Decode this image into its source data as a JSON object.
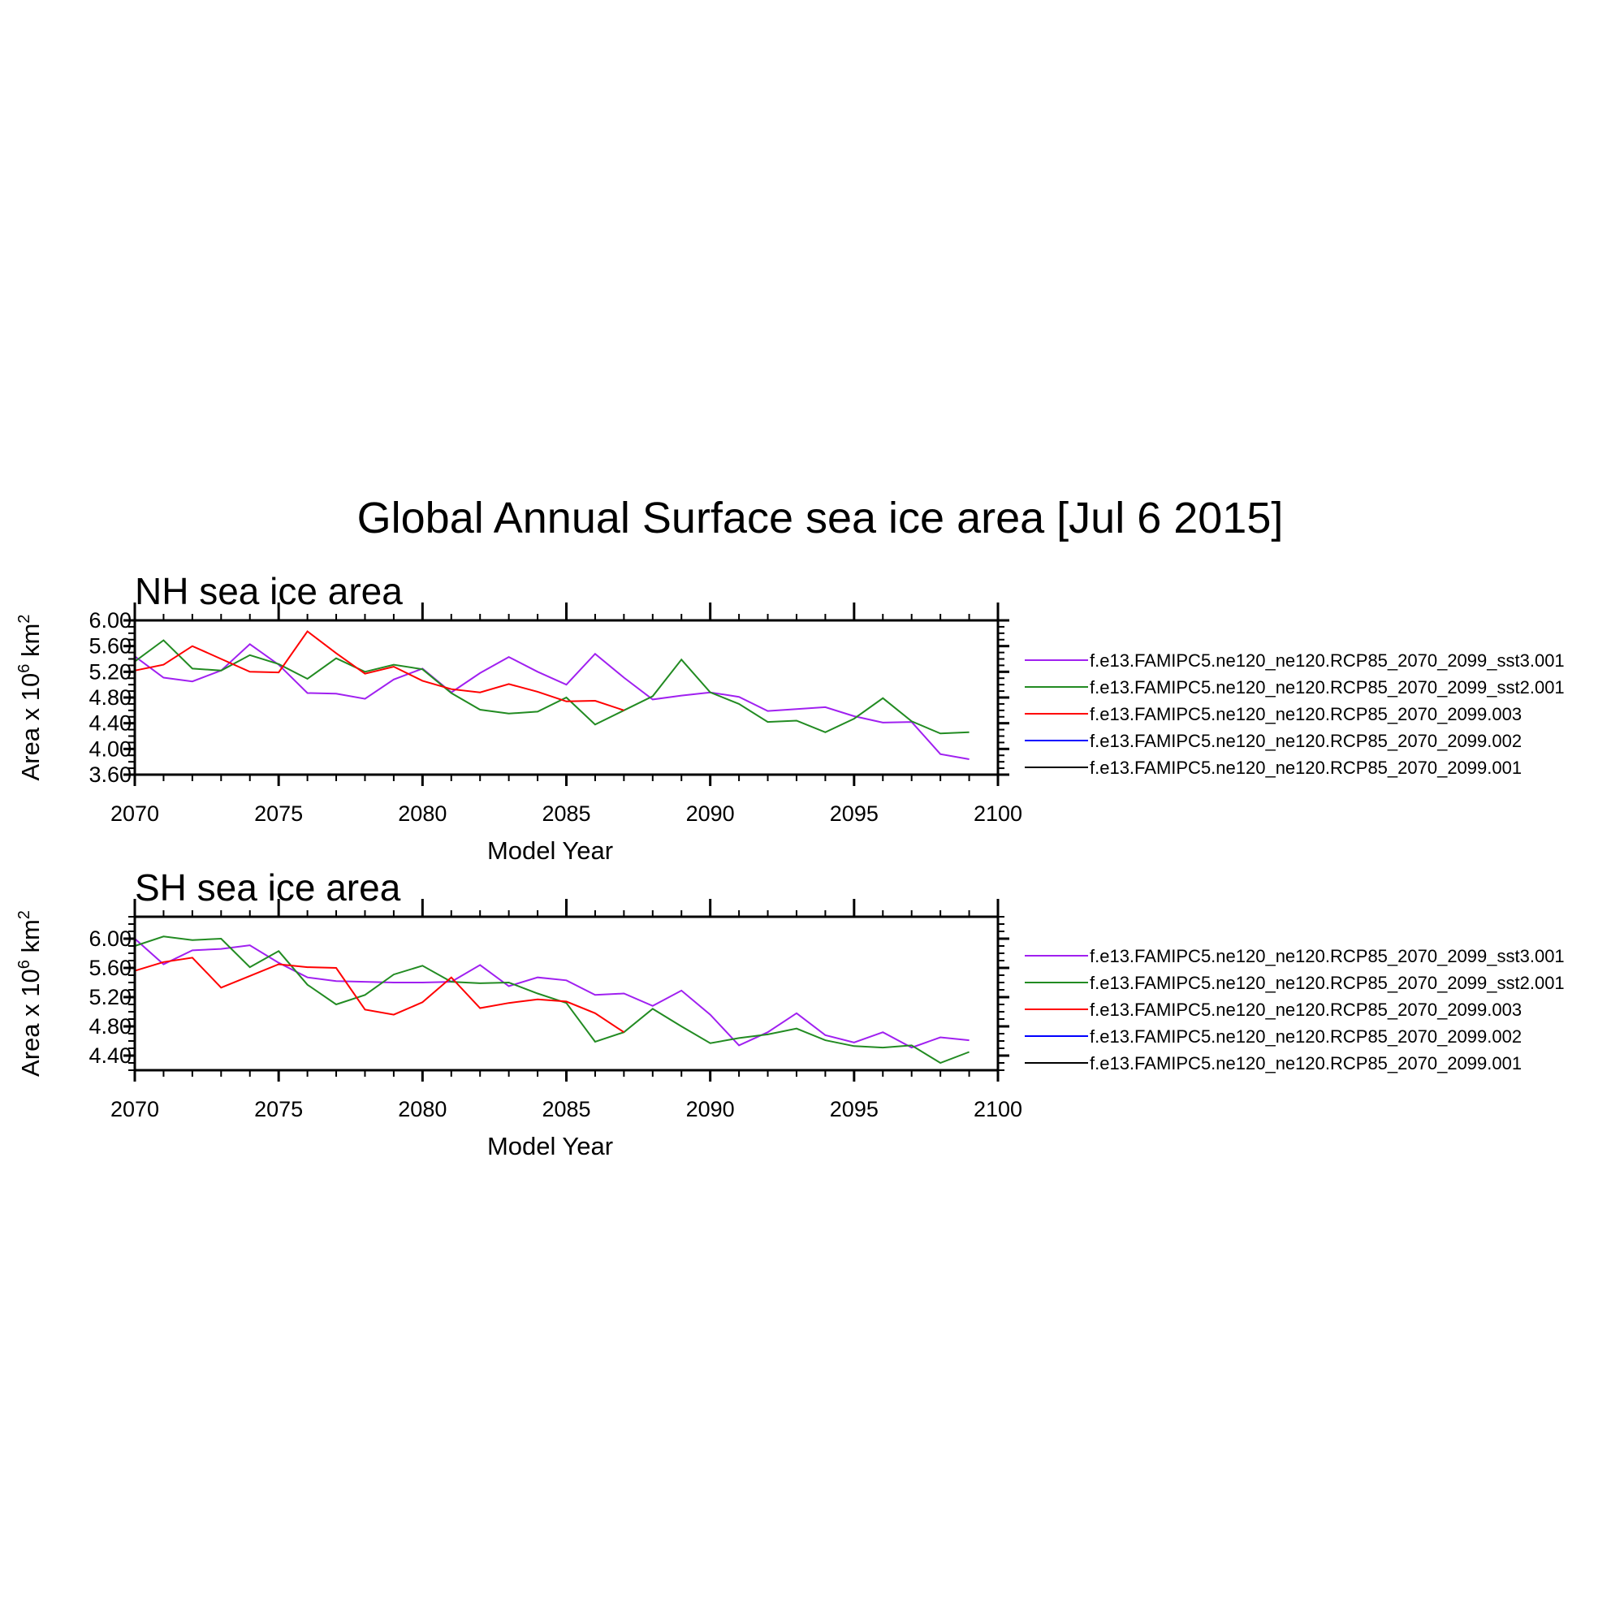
{
  "title": "Global Annual Surface sea ice area [Jul  6 2015]",
  "colors": {
    "sst3": "#a020f0",
    "sst2": "#228b22",
    "run003": "#ff0000",
    "run002": "#0000ff",
    "run001": "#000000"
  },
  "chart_data": [
    {
      "type": "line",
      "title": "NH sea ice area",
      "xlabel": "Model Year",
      "ylabel_prefix": "Area x 10",
      "ylabel_exp": "6",
      "ylabel_unit": " km",
      "ylabel_unit_exp": "2",
      "xlim": [
        2070,
        2100
      ],
      "ylim": [
        3.6,
        6.0
      ],
      "xticks": [
        2070,
        2075,
        2080,
        2085,
        2090,
        2095,
        2100
      ],
      "xtick_labels": [
        "2070",
        "2075",
        "2080",
        "2085",
        "2090",
        "2095",
        "2100"
      ],
      "yticks": [
        3.6,
        4.0,
        4.4,
        4.8,
        5.2,
        5.6,
        6.0
      ],
      "ytick_labels": [
        "3.60",
        "4.00",
        "4.40",
        "4.80",
        "5.20",
        "5.60",
        "6.00"
      ],
      "series": [
        {
          "name": "f.e13.FAMIPC5.ne120_ne120.RCP85_2070_2099_sst3.001",
          "color_key": "sst3",
          "x_start": 2070,
          "values": [
            5.44,
            5.11,
            5.05,
            5.22,
            5.63,
            5.31,
            4.87,
            4.86,
            4.78,
            5.08,
            5.25,
            4.88,
            5.18,
            5.43,
            5.2,
            5.0,
            5.48,
            5.11,
            4.77,
            4.83,
            4.88,
            4.81,
            4.59,
            4.62,
            4.65,
            4.51,
            4.41,
            4.42,
            3.92,
            3.84
          ]
        },
        {
          "name": "f.e13.FAMIPC5.ne120_ne120.RCP85_2070_2099_sst2.001",
          "color_key": "sst2",
          "x_start": 2070,
          "values": [
            5.36,
            5.69,
            5.25,
            5.22,
            5.46,
            5.32,
            5.09,
            5.41,
            5.2,
            5.31,
            5.24,
            4.87,
            4.61,
            4.55,
            4.58,
            4.8,
            4.38,
            4.6,
            4.82,
            5.39,
            4.88,
            4.7,
            4.42,
            4.44,
            4.26,
            4.47,
            4.79,
            4.43,
            4.24,
            4.26
          ]
        },
        {
          "name": "f.e13.FAMIPC5.ne120_ne120.RCP85_2070_2099.003",
          "color_key": "run003",
          "x_start": 2070,
          "values": [
            5.22,
            5.31,
            5.6,
            5.4,
            5.2,
            5.19,
            5.83,
            5.49,
            5.17,
            5.28,
            5.06,
            4.93,
            4.88,
            5.01,
            4.89,
            4.74,
            4.75,
            4.6
          ]
        },
        {
          "name": "f.e13.FAMIPC5.ne120_ne120.RCP85_2070_2099.002",
          "color_key": "run002",
          "x_start": 2070,
          "values": []
        },
        {
          "name": "f.e13.FAMIPC5.ne120_ne120.RCP85_2070_2099.001",
          "color_key": "run001",
          "x_start": 2070,
          "values": []
        }
      ]
    },
    {
      "type": "line",
      "title": "SH sea ice area",
      "xlabel": "Model Year",
      "ylabel_prefix": "Area x 10",
      "ylabel_exp": "6",
      "ylabel_unit": " km",
      "ylabel_unit_exp": "2",
      "xlim": [
        2070,
        2100
      ],
      "ylim": [
        4.2,
        6.3
      ],
      "xticks": [
        2070,
        2075,
        2080,
        2085,
        2090,
        2095,
        2100
      ],
      "xtick_labels": [
        "2070",
        "2075",
        "2080",
        "2085",
        "2090",
        "2095",
        "2100"
      ],
      "yticks": [
        4.4,
        4.8,
        5.2,
        5.6,
        6.0
      ],
      "ytick_labels": [
        "4.40",
        "4.80",
        "5.20",
        "5.60",
        "6.00"
      ],
      "series": [
        {
          "name": "f.e13.FAMIPC5.ne120_ne120.RCP85_2070_2099_sst3.001",
          "color_key": "sst3",
          "x_start": 2070,
          "values": [
            6.0,
            5.65,
            5.84,
            5.86,
            5.91,
            5.67,
            5.47,
            5.42,
            5.41,
            5.4,
            5.4,
            5.41,
            5.64,
            5.35,
            5.47,
            5.43,
            5.23,
            5.25,
            5.08,
            5.29,
            4.96,
            4.54,
            4.72,
            4.98,
            4.68,
            4.58,
            4.72,
            4.51,
            4.65,
            4.61
          ]
        },
        {
          "name": "f.e13.FAMIPC5.ne120_ne120.RCP85_2070_2099_sst2.001",
          "color_key": "sst2",
          "x_start": 2070,
          "values": [
            5.9,
            6.03,
            5.98,
            6.0,
            5.61,
            5.83,
            5.37,
            5.1,
            5.23,
            5.51,
            5.63,
            5.41,
            5.39,
            5.4,
            5.25,
            5.12,
            4.59,
            4.72,
            5.04,
            4.8,
            4.57,
            4.64,
            4.69,
            4.77,
            4.61,
            4.53,
            4.51,
            4.54,
            4.3,
            4.45
          ]
        },
        {
          "name": "f.e13.FAMIPC5.ne120_ne120.RCP85_2070_2099.003",
          "color_key": "run003",
          "x_start": 2070,
          "values": [
            5.56,
            5.68,
            5.74,
            5.33,
            5.49,
            5.65,
            5.61,
            5.6,
            5.03,
            4.96,
            5.13,
            5.47,
            5.05,
            5.12,
            5.17,
            5.14,
            4.98,
            4.72
          ]
        },
        {
          "name": "f.e13.FAMIPC5.ne120_ne120.RCP85_2070_2099.002",
          "color_key": "run002",
          "x_start": 2070,
          "values": []
        },
        {
          "name": "f.e13.FAMIPC5.ne120_ne120.RCP85_2070_2099.001",
          "color_key": "run001",
          "x_start": 2070,
          "values": []
        }
      ]
    }
  ]
}
